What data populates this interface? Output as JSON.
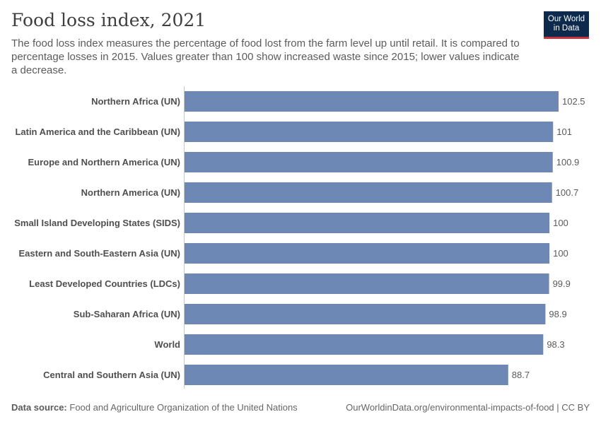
{
  "header": {
    "title": "Food loss index, 2021",
    "subtitle": "The food loss index measures the percentage of food lost from the farm level up until retail. It is compared to percentage losses in 2015. Values greater than 100 show increased waste since 2015; lower values indicate a decrease.",
    "logo_line1": "Our World",
    "logo_line2": "in Data"
  },
  "footer": {
    "source_label": "Data source:",
    "source_text": "Food and Agriculture Organization of the United Nations",
    "url": "OurWorldinData.org/environmental-impacts-of-food | CC BY"
  },
  "colors": {
    "bar": "#6d88b4",
    "logo_bg": "#0d2a4d",
    "logo_accent": "#c8323a"
  },
  "chart_data": {
    "type": "bar",
    "orientation": "horizontal",
    "title": "Food loss index, 2021",
    "categories": [
      "Northern Africa (UN)",
      "Latin America and the Caribbean (UN)",
      "Europe and Northern America (UN)",
      "Northern America (UN)",
      "Small Island Developing States (SIDS)",
      "Eastern and South-Eastern Asia (UN)",
      "Least Developed Countries (LDCs)",
      "Sub-Saharan Africa (UN)",
      "World",
      "Central and Southern Asia (UN)"
    ],
    "values": [
      102.5,
      101,
      100.9,
      100.7,
      100,
      100,
      99.9,
      98.9,
      98.3,
      88.7
    ],
    "value_labels": [
      "102.5",
      "101",
      "100.9",
      "100.7",
      "100",
      "100",
      "99.9",
      "98.9",
      "98.3",
      "88.7"
    ],
    "xlim": [
      0,
      102.5
    ],
    "grid": false,
    "legend": "none"
  }
}
